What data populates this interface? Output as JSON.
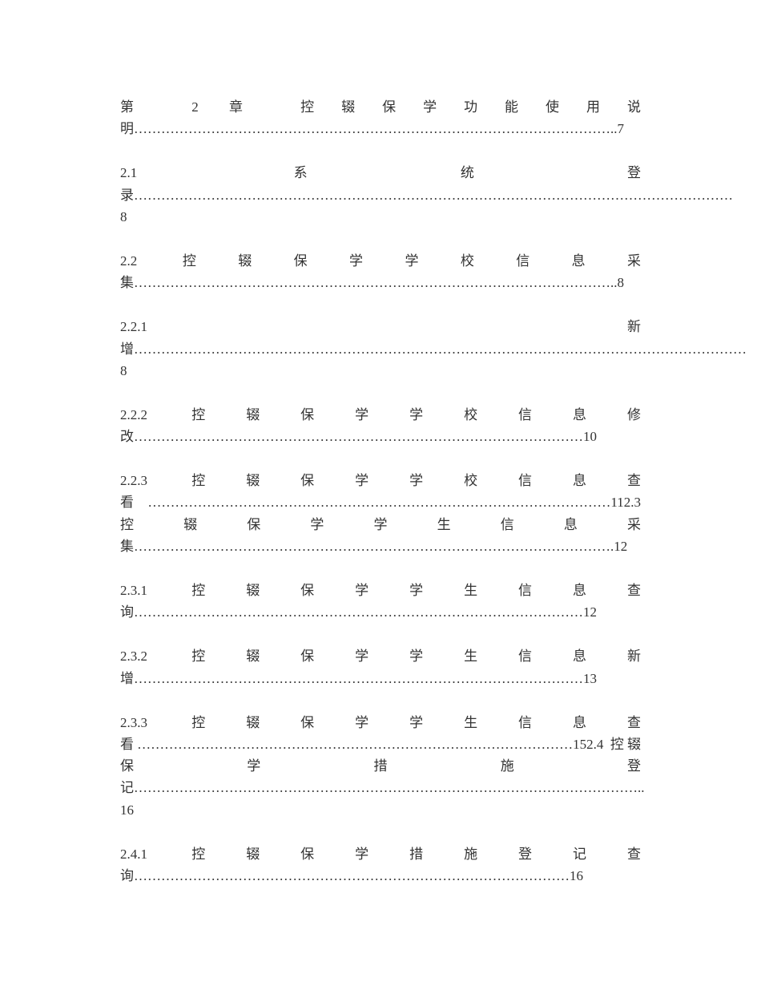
{
  "entries": [
    {
      "text": "第 2 章 控辍保学功能使用说明……………………………………………………………………………………………..7"
    },
    {
      "text": "2.1 系统登录……………………………………………………………………………………………………………………8"
    },
    {
      "text": "2.2 控辍保学学校信息采集……………………………………………………………………………………………..8"
    },
    {
      "text": "2.2.1 新增………………………………………………………………………………………………………………………8"
    },
    {
      "text": "2.2.2 控辍保学学校信息修改………………………………………………………………………………………10"
    },
    {
      "text": "2.2.3 控辍保学学校信息查看…………………………………………………………………………………………112.3 控辍保学学生信息采集…………………………………………………………………………………………….12"
    },
    {
      "text": "2.3.1 控辍保学学生信息查询………………………………………………………………………………………12"
    },
    {
      "text": "2.3.2 控辍保学学生信息新增………………………………………………………………………………………13"
    },
    {
      "text": "2.3.3 控辍保学学生信息查看……………………………………………………………………………………152.4 控辍保学措施登记…………………………………………………………………………………………………..16"
    },
    {
      "text": "2.4.1 控辍保学措施登记查询……………………………………………………………………………………16"
    }
  ],
  "styles": {
    "background_color": "#ffffff",
    "text_color": "#333333",
    "font_size": 17,
    "line_height": 1.6,
    "font_family": "SimSun"
  }
}
